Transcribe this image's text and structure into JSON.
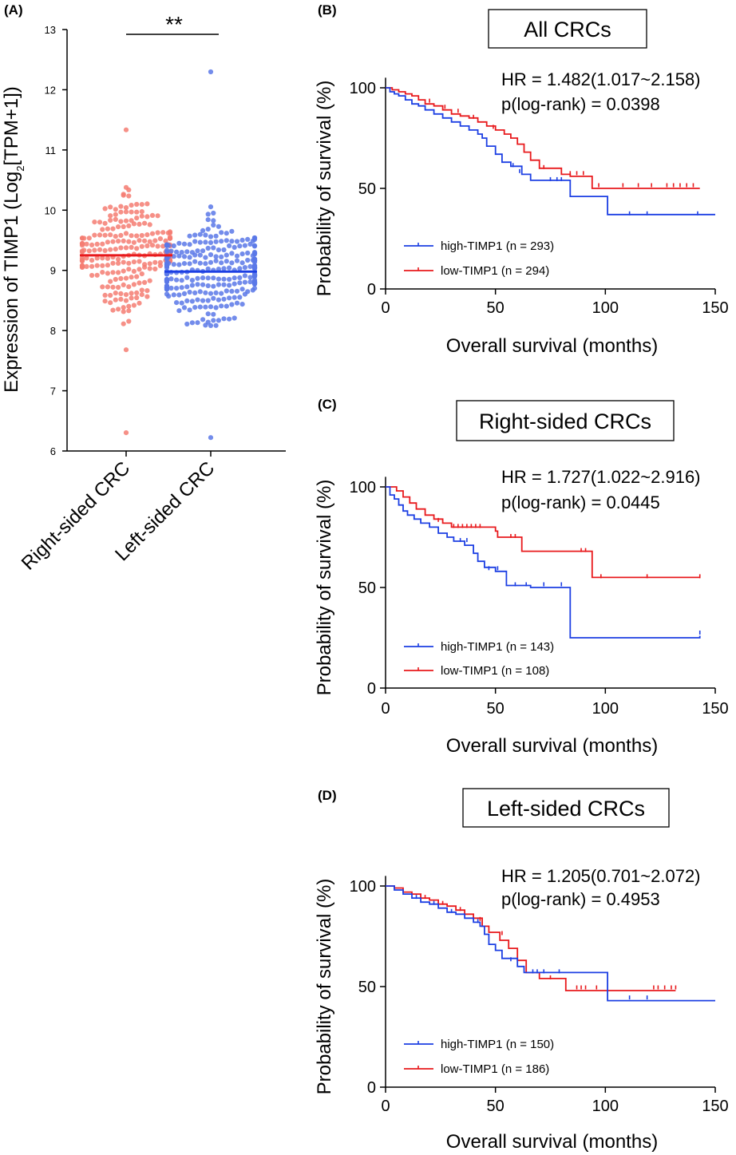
{
  "colors": {
    "red": "#e8191c",
    "blue": "#1c3fe3",
    "red_dot": "#f47c72",
    "blue_dot": "#5b78e8"
  },
  "panel_a": {
    "letter": "(A)",
    "significance": "**",
    "chart_data": {
      "type": "scatter",
      "ylabel": "Expression of TIMP1 (Log2[TPM+1])",
      "ylim": [
        6,
        13
      ],
      "yticks": [
        "6",
        "7",
        "8",
        "9",
        "10",
        "11",
        "12",
        "13"
      ],
      "categories": [
        "Right-sided CRC",
        "Left-sided CRC"
      ],
      "series": [
        {
          "category": "Right-sided CRC",
          "color": "#f47c72",
          "mean": 9.25,
          "n_points": 220,
          "min": 6.28,
          "max": 11.35
        },
        {
          "category": "Left-sided CRC",
          "color": "#5b78e8",
          "mean": 8.98,
          "n_points": 300,
          "min": 6.2,
          "max": 12.28
        }
      ]
    }
  },
  "km_panels": [
    {
      "letter": "(B)",
      "title": "All CRCs",
      "hr_text": "HR = 1.482(1.017~2.158)",
      "p_text": "p(log-rank) = 0.0398",
      "chart_data": {
        "type": "line",
        "xlabel": "Overall  survival (months)",
        "ylabel": "Probability of survival (%)",
        "xlim": [
          0,
          150
        ],
        "ylim": [
          0,
          100
        ],
        "xticks": [
          "0",
          "50",
          "100",
          "150"
        ],
        "yticks": [
          "0",
          "50",
          "100"
        ],
        "series": [
          {
            "name": "high-TIMP1 (n = 293)",
            "color": "#1c3fe3",
            "steps": [
              [
                0,
                100
              ],
              [
                2,
                98
              ],
              [
                4,
                97
              ],
              [
                6,
                96
              ],
              [
                9,
                94
              ],
              [
                12,
                92
              ],
              [
                15,
                91
              ],
              [
                18,
                89
              ],
              [
                22,
                87
              ],
              [
                26,
                85
              ],
              [
                30,
                83
              ],
              [
                34,
                81
              ],
              [
                38,
                79
              ],
              [
                42,
                77
              ],
              [
                44,
                75
              ],
              [
                46,
                71
              ],
              [
                50,
                67
              ],
              [
                53,
                63
              ],
              [
                57,
                61
              ],
              [
                62,
                57
              ],
              [
                66,
                54
              ],
              [
                84,
                46
              ],
              [
                101,
                37
              ],
              [
                150,
                37
              ]
            ],
            "censors": [
              [
                58,
                61
              ],
              [
                61,
                58
              ],
              [
                75,
                54
              ],
              [
                78,
                54
              ],
              [
                80,
                54
              ],
              [
                111,
                37
              ],
              [
                119,
                37
              ],
              [
                142,
                37
              ]
            ]
          },
          {
            "name": "low-TIMP1 (n = 294)",
            "color": "#e8191c",
            "steps": [
              [
                0,
                100
              ],
              [
                3,
                99
              ],
              [
                6,
                98
              ],
              [
                9,
                97
              ],
              [
                12,
                96
              ],
              [
                15,
                94
              ],
              [
                18,
                92
              ],
              [
                22,
                91
              ],
              [
                26,
                89
              ],
              [
                30,
                87
              ],
              [
                34,
                86
              ],
              [
                38,
                85
              ],
              [
                42,
                83
              ],
              [
                46,
                81
              ],
              [
                50,
                79
              ],
              [
                54,
                77
              ],
              [
                57,
                75
              ],
              [
                60,
                72
              ],
              [
                63,
                68
              ],
              [
                66,
                64
              ],
              [
                70,
                60
              ],
              [
                80,
                57
              ],
              [
                84,
                56
              ],
              [
                94,
                50
              ],
              [
                143,
                50
              ]
            ],
            "censors": [
              [
                20,
                93
              ],
              [
                27,
                90
              ],
              [
                33,
                88
              ],
              [
                40,
                85
              ],
              [
                49,
                80
              ],
              [
                72,
                60
              ],
              [
                84,
                57
              ],
              [
                87,
                57
              ],
              [
                90,
                57
              ],
              [
                97,
                51
              ],
              [
                108,
                51
              ],
              [
                115,
                51
              ],
              [
                121,
                51
              ],
              [
                128,
                51
              ],
              [
                131,
                51
              ],
              [
                134,
                51
              ],
              [
                137,
                51
              ],
              [
                140,
                51
              ]
            ]
          }
        ]
      }
    },
    {
      "letter": "(C)",
      "title": "Right-sided CRCs",
      "hr_text": "HR = 1.727(1.022~2.916)",
      "p_text": "p(log-rank) = 0.0445",
      "chart_data": {
        "type": "line",
        "xlabel": "Overall  survival (months)",
        "ylabel": "Probability of survival (%)",
        "xlim": [
          0,
          150
        ],
        "ylim": [
          0,
          100
        ],
        "xticks": [
          "0",
          "50",
          "100",
          "150"
        ],
        "yticks": [
          "0",
          "50",
          "100"
        ],
        "series": [
          {
            "name": "high-TIMP1 (n = 143)",
            "color": "#1c3fe3",
            "steps": [
              [
                0,
                100
              ],
              [
                2,
                96
              ],
              [
                4,
                94
              ],
              [
                6,
                91
              ],
              [
                8,
                88
              ],
              [
                10,
                86
              ],
              [
                13,
                84
              ],
              [
                16,
                82
              ],
              [
                20,
                80
              ],
              [
                24,
                77
              ],
              [
                28,
                75
              ],
              [
                31,
                73
              ],
              [
                36,
                71
              ],
              [
                40,
                67
              ],
              [
                42,
                63
              ],
              [
                45,
                60
              ],
              [
                50,
                58
              ],
              [
                55,
                51
              ],
              [
                60,
                51
              ],
              [
                65,
                51
              ],
              [
                66,
                50
              ],
              [
                84,
                25
              ],
              [
                143,
                26
              ]
            ],
            "censors": [
              [
                34,
                73
              ],
              [
                37,
                73
              ],
              [
                47,
                59
              ],
              [
                51,
                59
              ],
              [
                59,
                51
              ],
              [
                64,
                51
              ],
              [
                72,
                51
              ],
              [
                80,
                51
              ],
              [
                143,
                27
              ]
            ]
          },
          {
            "name": "low-TIMP1 (n = 108)",
            "color": "#e8191c",
            "steps": [
              [
                0,
                100
              ],
              [
                5,
                98
              ],
              [
                8,
                95
              ],
              [
                11,
                92
              ],
              [
                14,
                89
              ],
              [
                18,
                86
              ],
              [
                22,
                84
              ],
              [
                26,
                82
              ],
              [
                30,
                80
              ],
              [
                50,
                78
              ],
              [
                51,
                75
              ],
              [
                62,
                68
              ],
              [
                94,
                55
              ],
              [
                143,
                55
              ]
            ],
            "censors": [
              [
                24,
                83
              ],
              [
                31,
                80
              ],
              [
                33,
                80
              ],
              [
                35,
                80
              ],
              [
                37,
                80
              ],
              [
                39,
                80
              ],
              [
                41,
                80
              ],
              [
                43,
                80
              ],
              [
                57,
                75
              ],
              [
                59,
                75
              ],
              [
                89,
                68
              ],
              [
                91,
                68
              ],
              [
                98,
                55
              ],
              [
                119,
                55
              ],
              [
                143,
                55
              ]
            ]
          }
        ]
      }
    },
    {
      "letter": "(D)",
      "title": "Left-sided CRCs",
      "hr_text": "HR = 1.205(0.701~2.072)",
      "p_text": "p(log-rank) = 0.4953",
      "chart_data": {
        "type": "line",
        "xlabel": "Overall  survival (months)",
        "ylabel": "Probability of survival (%)",
        "xlim": [
          0,
          150
        ],
        "ylim": [
          0,
          100
        ],
        "xticks": [
          "0",
          "50",
          "100",
          "150"
        ],
        "yticks": [
          "0",
          "50",
          "100"
        ],
        "series": [
          {
            "name": "high-TIMP1 (n = 150)",
            "color": "#1c3fe3",
            "steps": [
              [
                0,
                100
              ],
              [
                4,
                98
              ],
              [
                8,
                96
              ],
              [
                12,
                94
              ],
              [
                16,
                92
              ],
              [
                20,
                91
              ],
              [
                24,
                89
              ],
              [
                28,
                87
              ],
              [
                32,
                86
              ],
              [
                36,
                84
              ],
              [
                40,
                82
              ],
              [
                43,
                80
              ],
              [
                45,
                76
              ],
              [
                47,
                71
              ],
              [
                50,
                68
              ],
              [
                53,
                64
              ],
              [
                60,
                60
              ],
              [
                63,
                57
              ],
              [
                101,
                43
              ],
              [
                150,
                43
              ]
            ],
            "censors": [
              [
                14,
                94
              ],
              [
                22,
                91
              ],
              [
                30,
                87
              ],
              [
                42,
                82
              ],
              [
                57,
                63
              ],
              [
                67,
                57
              ],
              [
                69,
                57
              ],
              [
                72,
                57
              ],
              [
                79,
                57
              ],
              [
                111,
                44
              ],
              [
                119,
                44
              ]
            ]
          },
          {
            "name": "low-TIMP1 (n = 186)",
            "color": "#e8191c",
            "steps": [
              [
                0,
                100
              ],
              [
                4,
                99
              ],
              [
                8,
                97
              ],
              [
                12,
                96
              ],
              [
                16,
                94
              ],
              [
                20,
                93
              ],
              [
                24,
                91
              ],
              [
                28,
                90
              ],
              [
                32,
                88
              ],
              [
                36,
                86
              ],
              [
                40,
                84
              ],
              [
                44,
                80
              ],
              [
                47,
                77
              ],
              [
                52,
                73
              ],
              [
                56,
                69
              ],
              [
                60,
                63
              ],
              [
                64,
                57
              ],
              [
                70,
                54
              ],
              [
                82,
                48
              ],
              [
                132,
                48
              ]
            ],
            "censors": [
              [
                18,
                94
              ],
              [
                26,
                91
              ],
              [
                34,
                88
              ],
              [
                43,
                83
              ],
              [
                53,
                76
              ],
              [
                75,
                54
              ],
              [
                87,
                49
              ],
              [
                89,
                49
              ],
              [
                91,
                49
              ],
              [
                96,
                49
              ],
              [
                122,
                49
              ],
              [
                124,
                49
              ],
              [
                127,
                49
              ],
              [
                130,
                49
              ],
              [
                132,
                49
              ]
            ]
          }
        ]
      }
    }
  ]
}
